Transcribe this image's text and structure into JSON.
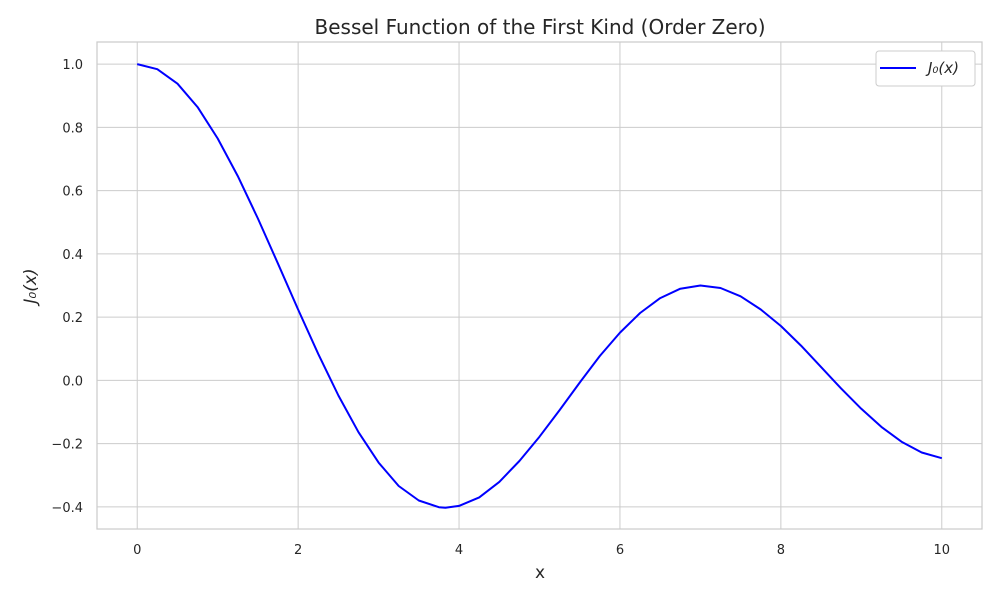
{
  "chart_data": {
    "type": "line",
    "title": "Bessel Function of the First Kind (Order Zero)",
    "xlabel": "x",
    "ylabel": "J₀(x)",
    "xlim": [
      -0.5,
      10.5
    ],
    "ylim": [
      -0.47,
      1.07
    ],
    "xticks": [
      0,
      2,
      4,
      6,
      8,
      10
    ],
    "yticks": [
      -0.4,
      -0.2,
      0.0,
      0.2,
      0.4,
      0.6,
      0.8,
      1.0
    ],
    "ytick_labels": [
      "−0.4",
      "−0.2",
      "0.0",
      "0.2",
      "0.4",
      "0.6",
      "0.8",
      "1.0"
    ],
    "grid": true,
    "legend_position": "top-right",
    "series": [
      {
        "name": "J₀(x)",
        "color": "#0000ff",
        "x": [
          0,
          0.25,
          0.5,
          0.75,
          1.0,
          1.25,
          1.5,
          1.75,
          2.0,
          2.25,
          2.5,
          2.75,
          3.0,
          3.25,
          3.5,
          3.75,
          3.83,
          4.0,
          4.25,
          4.5,
          4.75,
          5.0,
          5.25,
          5.5,
          5.75,
          6.0,
          6.25,
          6.5,
          6.75,
          7.0,
          7.25,
          7.5,
          7.75,
          8.0,
          8.25,
          8.5,
          8.75,
          9.0,
          9.25,
          9.5,
          9.75,
          10.0
        ],
        "y": [
          1.0,
          0.984,
          0.938,
          0.864,
          0.765,
          0.646,
          0.512,
          0.369,
          0.224,
          0.083,
          -0.048,
          -0.164,
          -0.26,
          -0.334,
          -0.38,
          -0.401,
          -0.403,
          -0.397,
          -0.37,
          -0.321,
          -0.255,
          -0.178,
          -0.094,
          -0.007,
          0.077,
          0.151,
          0.213,
          0.26,
          0.29,
          0.3,
          0.292,
          0.266,
          0.224,
          0.172,
          0.11,
          0.042,
          -0.026,
          -0.09,
          -0.147,
          -0.194,
          -0.228,
          -0.246
        ]
      }
    ]
  }
}
